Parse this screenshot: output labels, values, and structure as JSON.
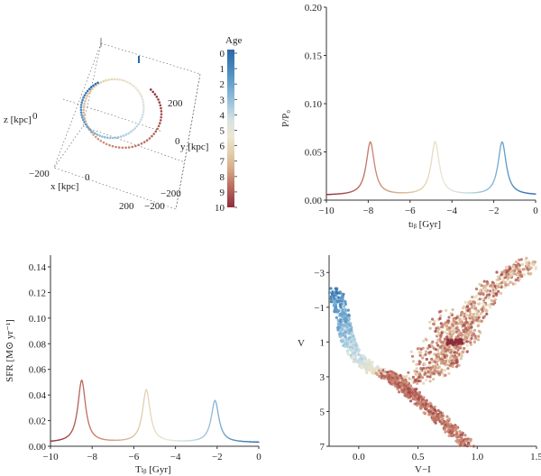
{
  "chart_data": [
    {
      "type": "line",
      "panel": "3d-orbit",
      "axis_labels": {
        "x": "x [kpc]",
        "y": "y [kpc]",
        "z": "z [kpc]"
      },
      "x_ticks": [
        "−200",
        "0",
        "200"
      ],
      "y_ticks": [
        "200",
        "0",
        "−200"
      ],
      "z_ticks": [
        "0",
        "−200"
      ],
      "colorbar": {
        "title": "Age",
        "ticks": [
          "0",
          "1",
          "2",
          "3",
          "4",
          "5",
          "6",
          "7",
          "8",
          "9",
          "10"
        ],
        "range": [
          0,
          10
        ],
        "colors": [
          "#2a67a8",
          "#4f8fc2",
          "#8dbad8",
          "#c6dde6",
          "#ece6d2",
          "#e3cfae",
          "#d6ad8c",
          "#c9846f",
          "#b05a55",
          "#8e2d3c"
        ]
      }
    },
    {
      "type": "line",
      "panel": "pressure-vs-time",
      "ylabel": "P/P₀",
      "xlabel": "tₗᵦ [Gyr]",
      "x_ticks": [
        "−10",
        "−8",
        "−6",
        "−4",
        "−2",
        "0"
      ],
      "y_ticks": [
        "0.00",
        "0.05",
        "0.10",
        "0.15",
        "0.20"
      ],
      "xlim": [
        -10,
        0
      ],
      "ylim": [
        0,
        0.2
      ],
      "baseline": 0.005,
      "peaks": [
        {
          "x": -7.9,
          "y": 0.06
        },
        {
          "x": -4.8,
          "y": 0.06
        },
        {
          "x": -1.6,
          "y": 0.06
        }
      ],
      "width": 0.35
    },
    {
      "type": "line",
      "panel": "sfr-vs-time",
      "ylabel": "SFR [M⊙ yr⁻¹]",
      "xlabel": "Tₗᵦ [Gyr]",
      "x_ticks": [
        "−10",
        "−8",
        "−6",
        "−4",
        "−2",
        "0"
      ],
      "y_ticks": [
        "0.00",
        "0.02",
        "0.04",
        "0.06",
        "0.08",
        "0.10",
        "0.12",
        "0.14"
      ],
      "xlim": [
        -10,
        0
      ],
      "ylim": [
        0,
        0.15
      ],
      "baseline": 0.003,
      "peaks": [
        {
          "x": -8.5,
          "y": 0.055
        },
        {
          "x": -5.4,
          "y": 0.047
        },
        {
          "x": -2.1,
          "y": 0.038
        }
      ],
      "width": 0.33
    },
    {
      "type": "scatter",
      "panel": "color-magnitude-diagram",
      "ylabel": "V",
      "xlabel": "V−I",
      "x_ticks": [
        "0.0",
        "0.5",
        "1.0",
        "1.5"
      ],
      "y_ticks": [
        "−3",
        "−1",
        "1",
        "3",
        "5",
        "7"
      ],
      "xlim": [
        -0.25,
        1.5
      ],
      "ylim": [
        7,
        -4
      ],
      "main_sequence": [
        [
          0.92,
          7.0
        ],
        [
          0.78,
          6.0
        ],
        [
          0.62,
          5.0
        ],
        [
          0.48,
          4.2
        ],
        [
          0.38,
          3.6
        ],
        [
          0.32,
          3.2
        ],
        [
          0.28,
          3.0
        ],
        [
          0.12,
          2.6
        ],
        [
          0.0,
          2.0
        ],
        [
          -0.08,
          1.2
        ],
        [
          -0.12,
          0.2
        ],
        [
          -0.15,
          -0.8
        ],
        [
          -0.2,
          -2.0
        ]
      ],
      "red_giant_branch": [
        [
          0.42,
          3.2
        ],
        [
          0.62,
          2.8
        ],
        [
          0.75,
          2.0
        ],
        [
          0.82,
          1.0
        ],
        [
          0.9,
          0.0
        ],
        [
          1.0,
          -1.0
        ],
        [
          1.12,
          -2.0
        ],
        [
          1.3,
          -3.0
        ],
        [
          1.45,
          -3.6
        ]
      ],
      "red_clump": [
        [
          0.8,
          1.0
        ]
      ]
    }
  ]
}
